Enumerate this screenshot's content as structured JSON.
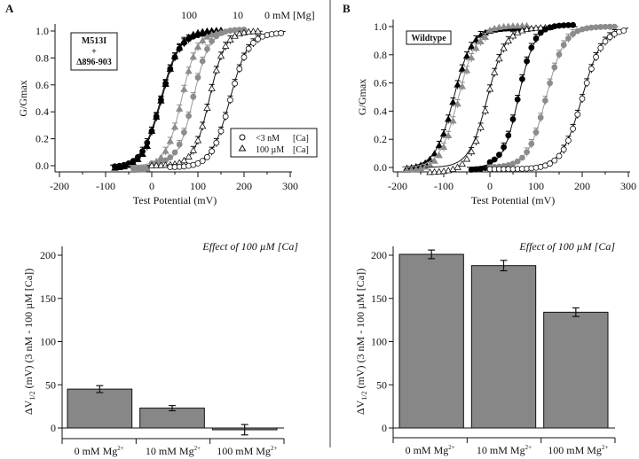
{
  "figure": {
    "panel_labels": [
      "A",
      "B"
    ]
  },
  "chart_data": [
    {
      "id": "A_top",
      "type": "scatter",
      "panel": "A",
      "xlabel": "Test Potential (mV)",
      "ylabel": "G/Gmax",
      "xlim": [
        -200,
        300
      ],
      "ylim": [
        0.0,
        1.0
      ],
      "xticks": [
        "-200",
        "-100",
        "0",
        "100",
        "200",
        "300"
      ],
      "yticks": [
        "0.0",
        "0.2",
        "0.4",
        "0.6",
        "0.8",
        "1.0"
      ],
      "inset_box": [
        "M513I",
        "+",
        "Δ896-903"
      ],
      "mg_labels": [
        "100",
        "10",
        "0 mM [Mg]"
      ],
      "legend": [
        {
          "marker": "circle-open",
          "label": "<3 nM",
          "unit": "[Ca]"
        },
        {
          "marker": "triangle-open",
          "label": "100 µM",
          "unit": "[Ca]"
        }
      ],
      "series": [
        {
          "name": "100 mM Mg, <3 nM Ca",
          "marker": "circle",
          "color": "#000000",
          "v_half": 20,
          "slope": 20,
          "vmin": -80,
          "vmax": 150
        },
        {
          "name": "100 mM Mg, 100 µM Ca",
          "marker": "triangle",
          "color": "#000000",
          "v_half": 22,
          "slope": 20,
          "vmin": -80,
          "vmax": 150
        },
        {
          "name": "10 mM Mg, 100 µM Ca",
          "marker": "triangle",
          "color": "#8c8c8c",
          "v_half": 65,
          "slope": 17,
          "vmin": -40,
          "vmax": 150
        },
        {
          "name": "10 mM Mg, <3 nM Ca",
          "marker": "circle",
          "color": "#8c8c8c",
          "v_half": 90,
          "slope": 17,
          "vmin": -40,
          "vmax": 200
        },
        {
          "name": "0 mM Mg, 100 µM Ca",
          "marker": "triangle-open",
          "color": "#000000",
          "v_half": 125,
          "slope": 17,
          "vmin": 0,
          "vmax": 230
        },
        {
          "name": "0 mM Mg, <3 nM Ca",
          "marker": "circle-open",
          "color": "#000000",
          "v_half": 170,
          "slope": 20,
          "vmin": 40,
          "vmax": 280
        }
      ]
    },
    {
      "id": "B_top",
      "type": "scatter",
      "panel": "B",
      "xlabel": "Test Potential (mV)",
      "ylabel": "G/Gmax",
      "xlim": [
        -200,
        300
      ],
      "ylim": [
        0.0,
        1.0
      ],
      "xticks": [
        "-200",
        "-100",
        "0",
        "100",
        "200",
        "300"
      ],
      "yticks": [
        "0.0",
        "0.2",
        "0.4",
        "0.6",
        "0.8",
        "1.0"
      ],
      "inset_box": [
        "Wildtype"
      ],
      "series": [
        {
          "name": "100 mM Mg, 100 µM Ca",
          "marker": "triangle",
          "color": "#000000",
          "v_half": -78,
          "slope": 20,
          "vmin": -180,
          "vmax": 80
        },
        {
          "name": "10 mM Mg, 100 µM Ca",
          "marker": "triangle",
          "color": "#8c8c8c",
          "v_half": -68,
          "slope": 20,
          "vmin": -180,
          "vmax": 80
        },
        {
          "name": "0 mM Mg, 100 µM Ca",
          "marker": "triangle-open",
          "color": "#000000",
          "v_half": -5,
          "slope": 20,
          "vmin": -130,
          "vmax": 135
        },
        {
          "name": "100 mM Mg, <3 nM Ca",
          "marker": "circle",
          "color": "#000000",
          "v_half": 62,
          "slope": 17,
          "vmin": -40,
          "vmax": 180
        },
        {
          "name": "10 mM Mg, <3 nM Ca",
          "marker": "circle",
          "color": "#8c8c8c",
          "v_half": 122,
          "slope": 20,
          "vmin": 0,
          "vmax": 270
        },
        {
          "name": "0 mM Mg, <3 nM Ca",
          "marker": "circle-open",
          "color": "#000000",
          "v_half": 200,
          "slope": 22,
          "vmin": 0,
          "vmax": 290
        }
      ]
    },
    {
      "id": "A_bottom",
      "type": "bar",
      "panel": "A",
      "title": "Effect of 100 µM [Ca]",
      "ylabel": "ΔV1/2 (mV)  (3 nM - 100 µM [Ca])",
      "ylabel_main": "ΔV",
      "ylabel_sub": "1/2",
      "ylabel_rest": " (mV)  (3 nM - 100 µM [Ca])",
      "ylim": [
        0,
        200
      ],
      "yticks": [
        "0",
        "50",
        "100",
        "150",
        "200"
      ],
      "categories": [
        "0 mM Mg",
        "10 mM Mg",
        "100 mM Mg"
      ],
      "category_sup": "2+",
      "values": [
        45,
        23,
        -2
      ],
      "errors": [
        4,
        3,
        6
      ],
      "bar_color": "#878787"
    },
    {
      "id": "B_bottom",
      "type": "bar",
      "panel": "B",
      "title": "Effect of 100 µM [Ca]",
      "ylabel": "ΔV1/2 (mV)  (3 nM - 100 µM [Ca])",
      "ylabel_main": "ΔV",
      "ylabel_sub": "1/2",
      "ylabel_rest": " (mV)  (3 nM - 100 µM [Ca])",
      "ylim": [
        0,
        200
      ],
      "yticks": [
        "0",
        "50",
        "100",
        "150",
        "200"
      ],
      "categories": [
        "0 mM Mg",
        "10 mM Mg",
        "100 mM Mg"
      ],
      "category_sup": "2+",
      "values": [
        201,
        188,
        134
      ],
      "errors": [
        5,
        6,
        5
      ],
      "bar_color": "#878787"
    }
  ]
}
